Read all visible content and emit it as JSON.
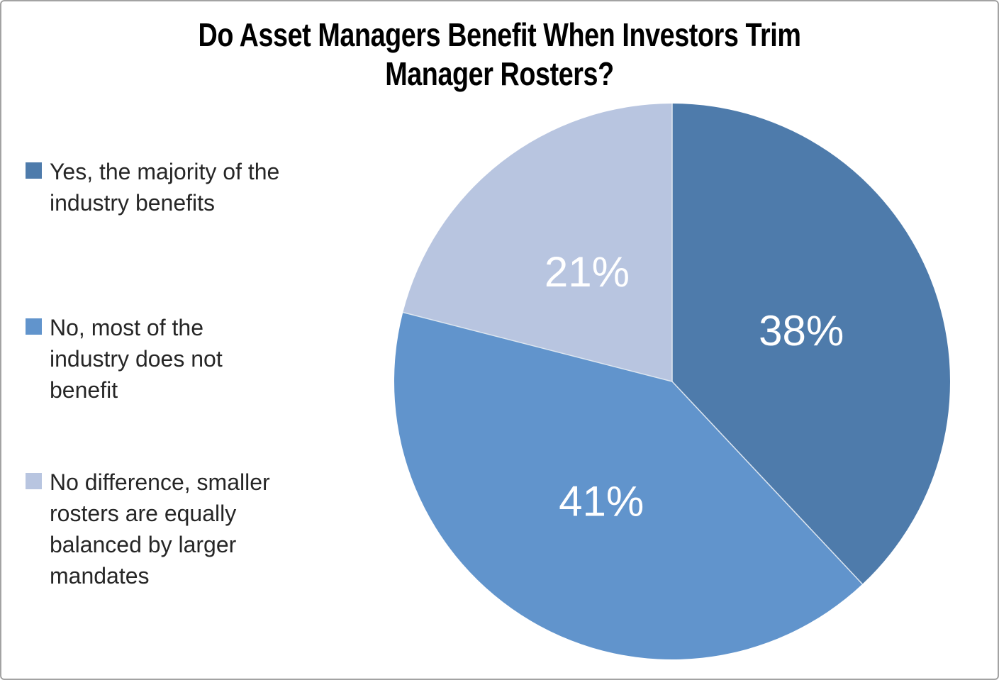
{
  "frame": {
    "border_color": "#a3a3a3",
    "background_color": "#ffffff"
  },
  "chart_data": {
    "type": "pie",
    "title": "Do Asset Managers Benefit When Investors Trim\nManager Rosters?",
    "legend_position": "left",
    "direction": "clockwise",
    "start_angle_deg": 0,
    "data_label_color": "#ffffff",
    "slice_border_color": "#dde6f0",
    "slices": [
      {
        "label": "Yes, the majority of the industry benefits",
        "value": 38,
        "data_label": "38%",
        "color": "#4e7bab"
      },
      {
        "label": "No, most of the industry does not benefit",
        "value": 41,
        "data_label": "41%",
        "color": "#6194cc"
      },
      {
        "label": "No difference, smaller rosters are equally balanced by larger mandates",
        "value": 21,
        "data_label": "21%",
        "color": "#b8c5e0"
      }
    ]
  },
  "legend": {
    "items": [
      {
        "text": "Yes, the majority of the\nindustry benefits"
      },
      {
        "text": "No, most of the\nindustry does not\nbenefit"
      },
      {
        "text": "No difference, smaller\nrosters are equally\nbalanced by larger\nmandates"
      }
    ]
  }
}
